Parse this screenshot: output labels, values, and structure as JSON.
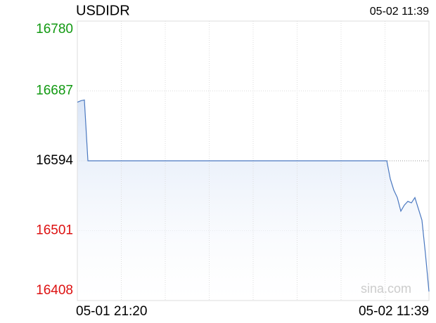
{
  "chart_data": {
    "type": "line",
    "title": "USDIDR",
    "timestamp": "05-02 11:39",
    "watermark": "sina.com",
    "categories": [
      "05-01 21:20",
      null,
      null,
      null,
      null,
      null,
      null,
      null,
      null,
      null,
      null,
      null,
      null,
      null,
      null,
      null,
      null,
      null,
      null,
      null,
      null,
      null,
      null,
      null,
      null,
      null,
      null,
      null,
      null,
      null,
      null,
      null,
      null,
      null,
      null,
      null,
      null,
      null,
      null,
      null,
      null,
      null,
      null,
      null,
      null,
      null,
      null,
      null,
      null,
      null,
      null,
      null,
      null,
      null,
      null,
      null,
      null,
      null,
      null,
      null,
      null,
      null,
      null,
      null,
      null,
      null,
      null,
      null,
      null,
      null,
      null,
      null,
      null,
      null,
      null,
      null,
      null,
      null,
      null,
      null,
      null,
      null,
      null,
      null,
      null,
      null,
      null,
      null,
      null,
      null,
      null,
      null,
      null,
      null,
      null,
      null,
      null,
      null,
      null,
      null,
      "05-02 11:39"
    ],
    "values": [
      16672,
      16674,
      16675,
      16594,
      16594,
      16594,
      16594,
      16594,
      16594,
      16594,
      16594,
      16594,
      16594,
      16594,
      16594,
      16594,
      16594,
      16594,
      16594,
      16594,
      16594,
      16594,
      16594,
      16594,
      16594,
      16594,
      16594,
      16594,
      16594,
      16594,
      16594,
      16594,
      16594,
      16594,
      16594,
      16594,
      16594,
      16594,
      16594,
      16594,
      16594,
      16594,
      16594,
      16594,
      16594,
      16594,
      16594,
      16594,
      16594,
      16594,
      16594,
      16594,
      16594,
      16594,
      16594,
      16594,
      16594,
      16594,
      16594,
      16594,
      16594,
      16594,
      16594,
      16594,
      16594,
      16594,
      16594,
      16594,
      16594,
      16594,
      16594,
      16594,
      16594,
      16594,
      16594,
      16594,
      16594,
      16594,
      16594,
      16594,
      16594,
      16594,
      16594,
      16594,
      16594,
      16594,
      16594,
      16594,
      16594,
      16570,
      16555,
      16545,
      16527,
      16535,
      16540,
      16538,
      16545,
      16530,
      16515,
      16470,
      16420
    ],
    "color": "#4a78c0",
    "ylim": [
      16408,
      16780
    ],
    "yticks": [
      16408,
      16501,
      16594,
      16687,
      16780
    ],
    "ytick_colors": [
      "#dd1111",
      "#dd1111",
      "#000000",
      "#119911",
      "#119911"
    ],
    "grid": true
  }
}
